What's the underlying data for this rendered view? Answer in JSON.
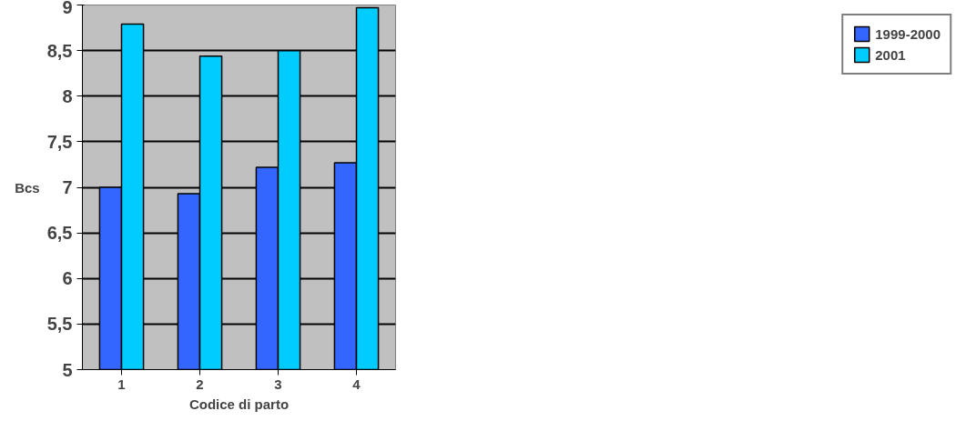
{
  "chart_data": {
    "type": "bar",
    "xlabel": "Codice di parto",
    "ylabel": "Bcs",
    "categories": [
      "1",
      "2",
      "3",
      "4"
    ],
    "series": [
      {
        "name": "1999-2000",
        "color": "#3366ff",
        "values": [
          7.0,
          6.93,
          7.22,
          7.27
        ]
      },
      {
        "name": "2001",
        "color": "#00ccff",
        "values": [
          8.79,
          8.44,
          8.5,
          8.97
        ]
      }
    ],
    "ylim": [
      5,
      9
    ],
    "yticks": [
      5,
      {
        "value": 5.5,
        "label": "5,5"
      },
      6,
      {
        "value": 6.5,
        "label": "6,5"
      },
      7,
      {
        "value": 7.5,
        "label": "7,5"
      },
      8,
      {
        "value": 8.5,
        "label": "8,5"
      },
      9
    ],
    "grid": "y",
    "legend": "right"
  }
}
